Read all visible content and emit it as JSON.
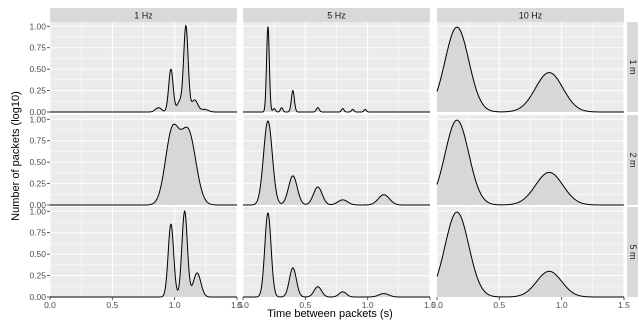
{
  "chart_data": {
    "type": "area",
    "facet_columns": [
      "1 Hz",
      "5 Hz",
      "10 Hz"
    ],
    "facet_rows": [
      "1 m",
      "2 m",
      "5 m"
    ],
    "xlabel": "Time between packets (s)",
    "ylabel": "Number of packets (log10)",
    "xlim": [
      0,
      1.5
    ],
    "ylim": [
      0,
      1.05
    ],
    "x_ticks": [
      0,
      0.5,
      1,
      1.5
    ],
    "x_tick_labels": [
      "0.0",
      "0.5",
      "1.0",
      "1.5"
    ],
    "y_ticks": [
      0,
      0.25,
      0.5,
      0.75,
      1
    ],
    "y_tick_labels": [
      "0.00",
      "0.25",
      "0.50",
      "0.75",
      "1.00"
    ],
    "grid": true,
    "legend": "none",
    "panels": [
      {
        "column": "1 Hz",
        "row": "1 m",
        "peaks": [
          {
            "x": 0.87,
            "height": 0.05,
            "width": 0.025
          },
          {
            "x": 0.97,
            "height": 0.5,
            "width": 0.018
          },
          {
            "x": 1.04,
            "height": 0.12,
            "width": 0.02
          },
          {
            "x": 1.09,
            "height": 1.0,
            "width": 0.018
          },
          {
            "x": 1.16,
            "height": 0.14,
            "width": 0.025
          },
          {
            "x": 1.24,
            "height": 0.03,
            "width": 0.03
          }
        ]
      },
      {
        "column": "5 Hz",
        "row": "1 m",
        "peaks": [
          {
            "x": 0.2,
            "height": 1.0,
            "width": 0.011
          },
          {
            "x": 0.25,
            "height": 0.04,
            "width": 0.01
          },
          {
            "x": 0.31,
            "height": 0.05,
            "width": 0.01
          },
          {
            "x": 0.4,
            "height": 0.25,
            "width": 0.012
          },
          {
            "x": 0.6,
            "height": 0.05,
            "width": 0.012
          },
          {
            "x": 0.8,
            "height": 0.04,
            "width": 0.01
          },
          {
            "x": 0.88,
            "height": 0.03,
            "width": 0.01
          },
          {
            "x": 0.98,
            "height": 0.03,
            "width": 0.01
          }
        ]
      },
      {
        "column": "10 Hz",
        "row": "1 m",
        "peaks": [
          {
            "x": 0.16,
            "height": 0.99,
            "width": 0.095
          },
          {
            "x": 0.9,
            "height": 0.46,
            "width": 0.11
          }
        ]
      },
      {
        "column": "1 Hz",
        "row": "2 m",
        "peaks": [
          {
            "x": 0.98,
            "height": 0.84,
            "width": 0.055
          },
          {
            "x": 1.11,
            "height": 0.84,
            "width": 0.06
          }
        ]
      },
      {
        "column": "5 Hz",
        "row": "2 m",
        "peaks": [
          {
            "x": 0.2,
            "height": 0.98,
            "width": 0.035
          },
          {
            "x": 0.4,
            "height": 0.34,
            "width": 0.035
          },
          {
            "x": 0.6,
            "height": 0.21,
            "width": 0.035
          },
          {
            "x": 0.8,
            "height": 0.06,
            "width": 0.04
          },
          {
            "x": 1.13,
            "height": 0.12,
            "width": 0.045
          }
        ]
      },
      {
        "column": "10 Hz",
        "row": "2 m",
        "peaks": [
          {
            "x": 0.16,
            "height": 0.99,
            "width": 0.095
          },
          {
            "x": 0.9,
            "height": 0.38,
            "width": 0.11
          }
        ]
      },
      {
        "column": "1 Hz",
        "row": "5 m",
        "peaks": [
          {
            "x": 0.97,
            "height": 0.85,
            "width": 0.022
          },
          {
            "x": 1.08,
            "height": 1.0,
            "width": 0.022
          },
          {
            "x": 1.18,
            "height": 0.28,
            "width": 0.03
          }
        ]
      },
      {
        "column": "5 Hz",
        "row": "5 m",
        "peaks": [
          {
            "x": 0.2,
            "height": 0.98,
            "width": 0.025
          },
          {
            "x": 0.4,
            "height": 0.34,
            "width": 0.028
          },
          {
            "x": 0.6,
            "height": 0.12,
            "width": 0.03
          },
          {
            "x": 0.8,
            "height": 0.06,
            "width": 0.03
          },
          {
            "x": 1.13,
            "height": 0.04,
            "width": 0.04
          }
        ]
      },
      {
        "column": "10 Hz",
        "row": "5 m",
        "peaks": [
          {
            "x": 0.16,
            "height": 0.99,
            "width": 0.095
          },
          {
            "x": 0.9,
            "height": 0.3,
            "width": 0.1
          }
        ]
      }
    ]
  },
  "colors": {
    "panel_background": "#ebebeb",
    "gridline": "#ffffff",
    "strip_background": "#d9d9d9",
    "density_fill": "#d4d4d4",
    "density_line": "#000000"
  }
}
